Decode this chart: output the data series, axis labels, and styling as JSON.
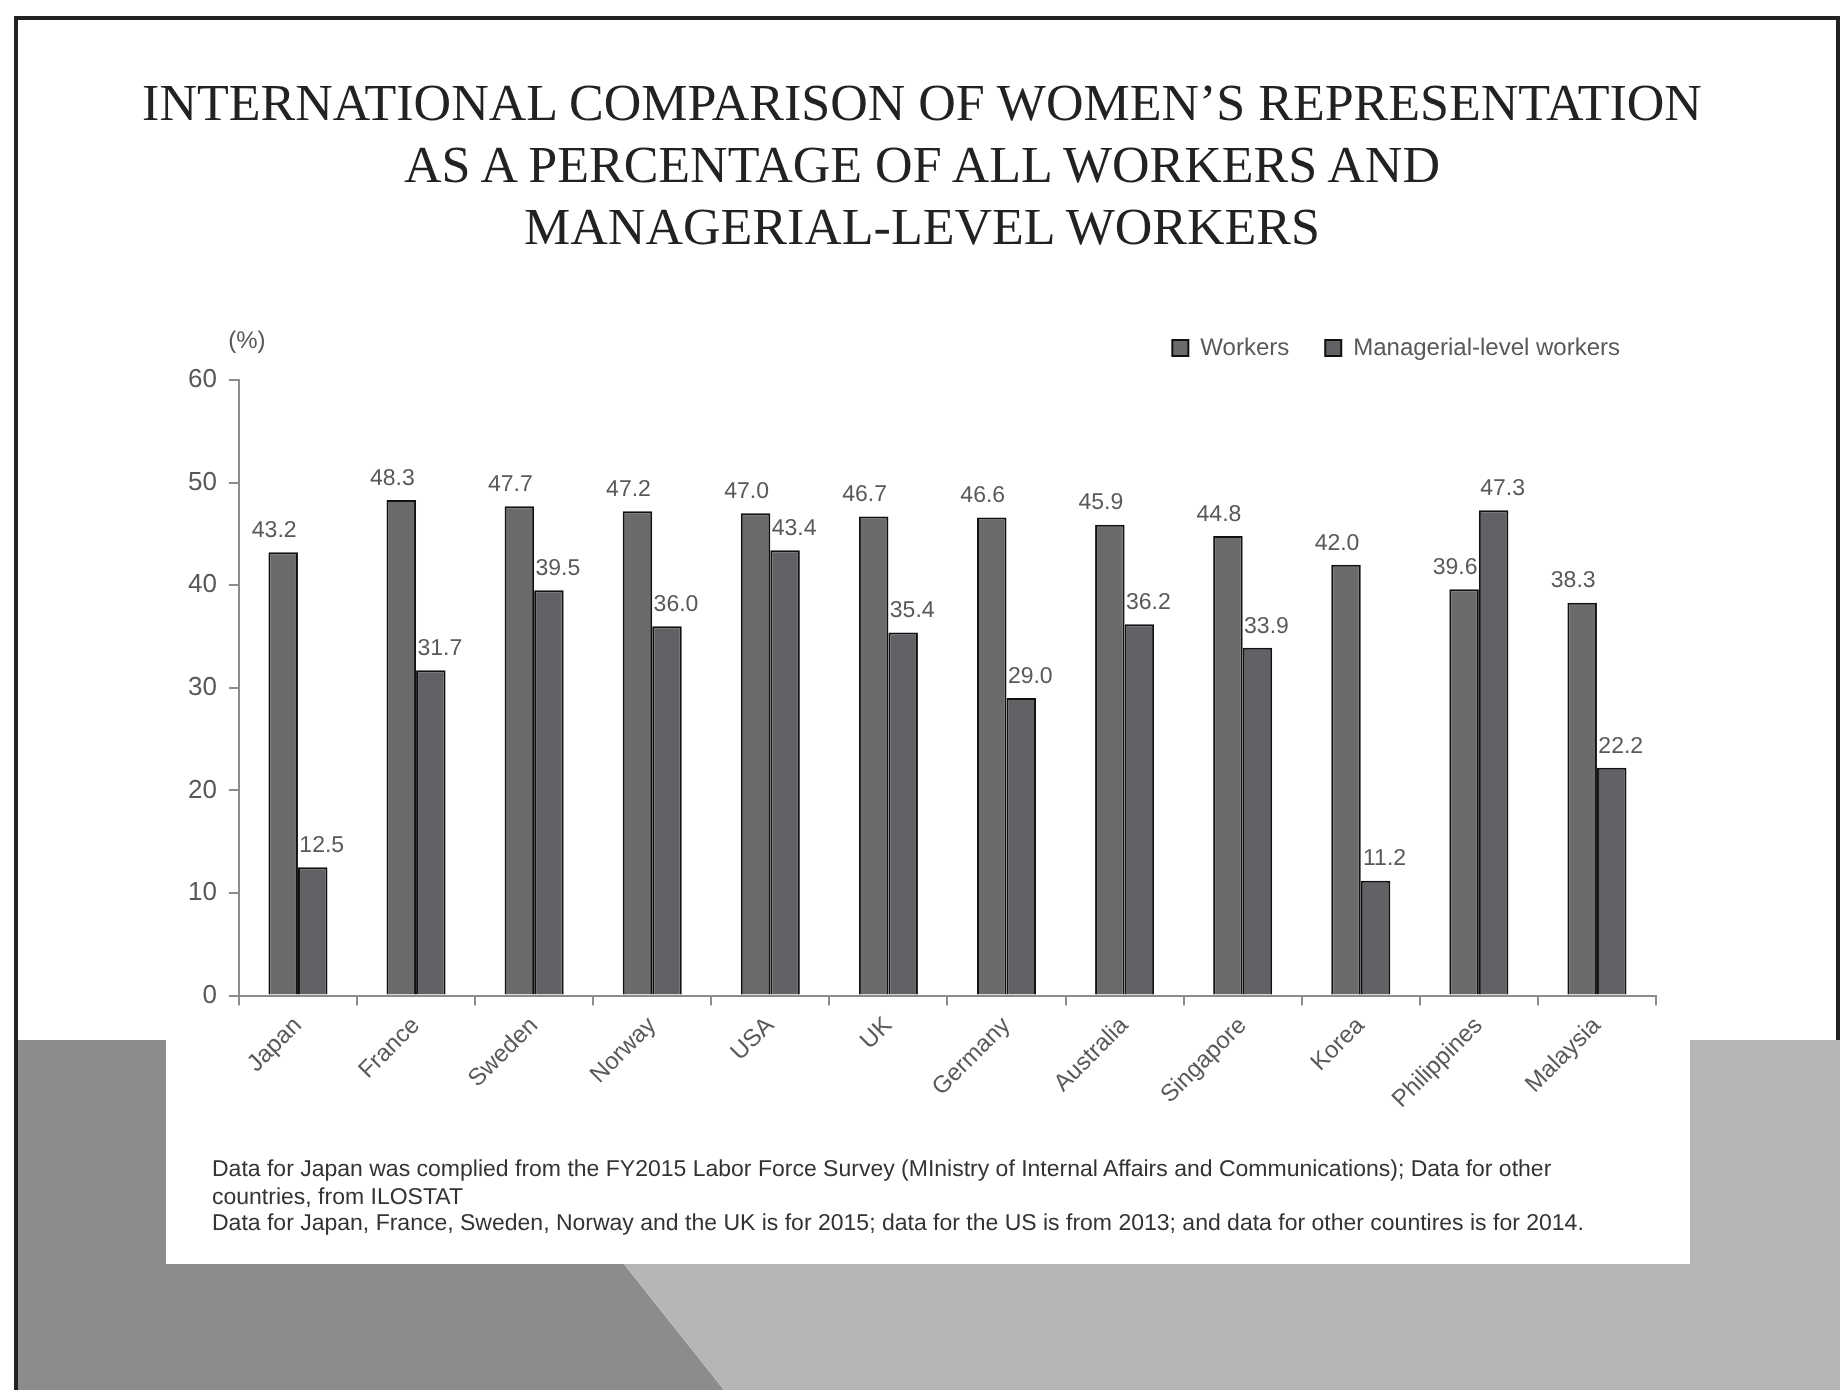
{
  "chart_data": {
    "type": "bar",
    "title": "INTERNATIONAL COMPARISON OF WOMEN’S REPRESENTATION\nAS A PERCENTAGE OF ALL WORKERS AND\nMANAGERIAL-LEVEL WORKERS",
    "ylabel": "(%)",
    "categories": [
      "Japan",
      "France",
      "Sweden",
      "Norway",
      "USA",
      "UK",
      "Germany",
      "Australia",
      "Singapore",
      "Korea",
      "Philippines",
      "Malaysia"
    ],
    "series": [
      {
        "name": "Workers",
        "color": "#6b6b6e",
        "values": [
          43.2,
          48.3,
          47.7,
          47.2,
          47.0,
          46.7,
          46.6,
          45.9,
          44.8,
          42.0,
          39.6,
          38.3
        ],
        "value_labels": [
          "43.2",
          "48.3",
          "47.7",
          "47.2",
          "47.0",
          "46.7",
          "46.6",
          "45.9",
          "44.8",
          "42.0",
          "39.6",
          "38.3"
        ]
      },
      {
        "name": "Managerial-level workers",
        "color": "#626266",
        "values": [
          12.5,
          31.7,
          39.5,
          36.0,
          43.4,
          35.4,
          29.0,
          36.2,
          33.9,
          11.2,
          47.3,
          22.2
        ],
        "value_labels": [
          "12.5",
          "31.7",
          "39.5",
          "36.0",
          "43.4",
          "35.4",
          "29.0",
          "36.2",
          "33.9",
          "11.2",
          "47.3",
          "22.2"
        ]
      }
    ],
    "ylim": [
      0,
      60
    ],
    "yticks": [
      0,
      10,
      20,
      30,
      40,
      50,
      60
    ],
    "grid": false,
    "legend": "top right",
    "annotations": [
      "Data for Japan was complied from the FY2015 Labor Force Survey (MInistry of Internal Affairs and Communications); Data for other countries, from ILOSTAT",
      "Data for Japan, France, Sweden, Norway and the UK is for 2015; data for the US is from 2013; and data for other countires is for 2014."
    ]
  }
}
